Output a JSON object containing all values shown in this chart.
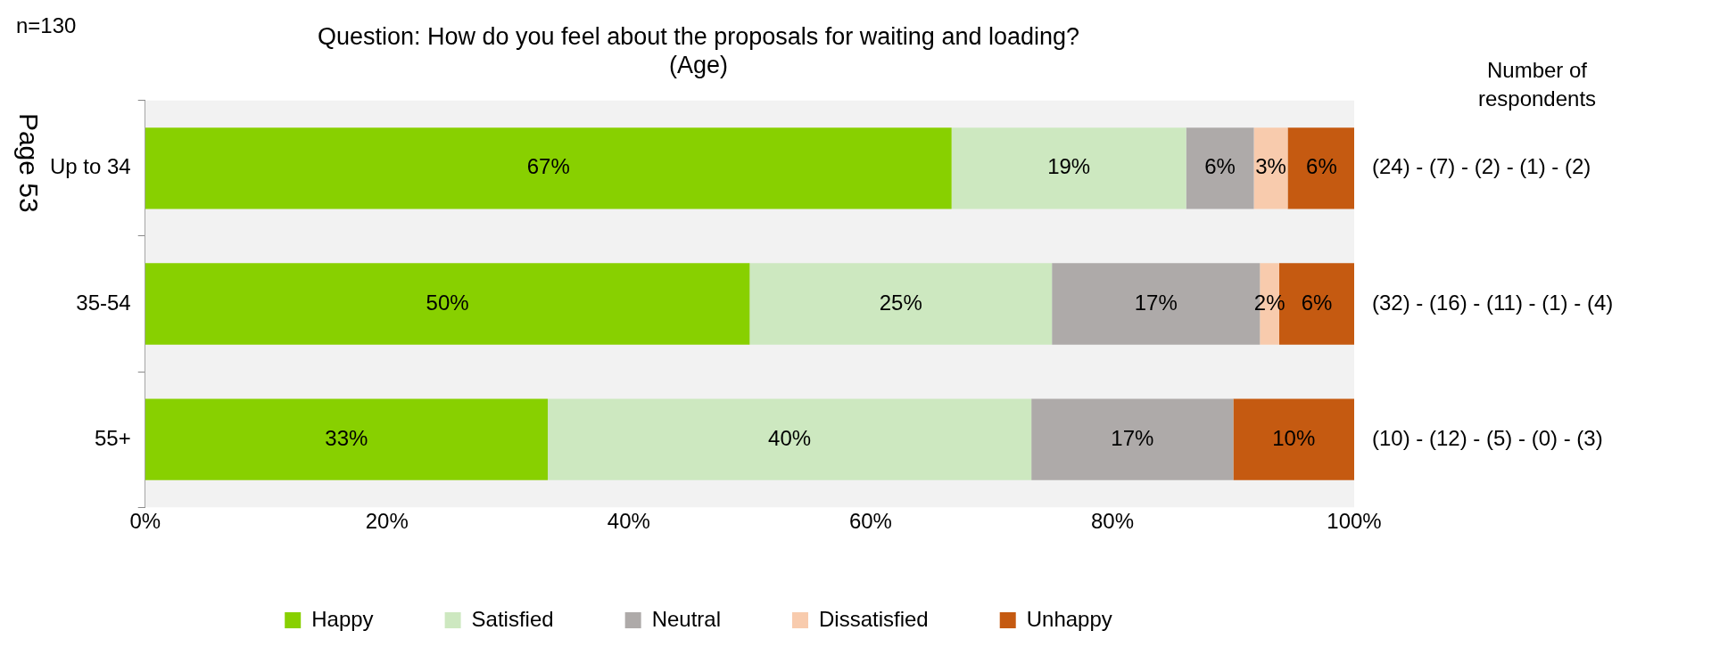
{
  "chart_data": {
    "type": "bar",
    "orientation": "horizontal",
    "stacked": true,
    "title": "Question: How do you feel about the proposals for waiting and loading?\n(Age)",
    "categories": [
      "Up to 34",
      "35-54",
      "55+"
    ],
    "series": [
      {
        "name": "Happy",
        "color": "#88d000",
        "values": [
          66.7,
          50,
          33.3
        ],
        "value_labels": [
          "67%",
          "50%",
          "33%"
        ]
      },
      {
        "name": "Satisfied",
        "color": "#cde8c0",
        "values": [
          19.4,
          25,
          40
        ],
        "value_labels": [
          "19%",
          "25%",
          "40%"
        ]
      },
      {
        "name": "Neutral",
        "color": "#aeaaa9",
        "values": [
          5.6,
          17.2,
          16.7
        ],
        "value_labels": [
          "6%",
          "17%",
          "17%"
        ]
      },
      {
        "name": "Dissatisfied",
        "color": "#f8cbad",
        "values": [
          2.8,
          1.6,
          0
        ],
        "value_labels": [
          "3%",
          "2%",
          null
        ]
      },
      {
        "name": "Unhappy",
        "color": "#c55a11",
        "values": [
          5.6,
          6.2,
          10
        ],
        "value_labels": [
          "6%",
          "6%",
          "10%"
        ]
      }
    ],
    "xlim": [
      0,
      100
    ],
    "xticks": [
      {
        "value": 0,
        "label": "0%"
      },
      {
        "value": 20,
        "label": "20%"
      },
      {
        "value": 40,
        "label": "40%"
      },
      {
        "value": 60,
        "label": "60%"
      },
      {
        "value": 80,
        "label": "80%"
      },
      {
        "value": 100,
        "label": "100%"
      }
    ],
    "legend": "bottom",
    "annotations": [
      "n=130",
      "Number of respondents",
      "Page 53",
      "(24) - (7) - (2) - (1) - (2)",
      "(32) - (16) - (11) - (1) - (4)",
      "(10) - (12) - (5) - (0) - (3)"
    ]
  }
}
